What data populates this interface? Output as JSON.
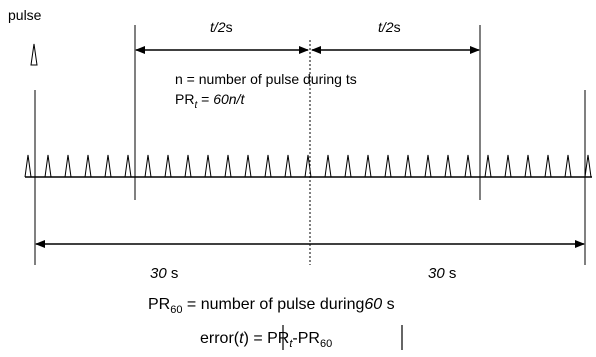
{
  "legend_pulse_label": "pulse",
  "top_left_half": {
    "var": "t/2",
    "unit": "s"
  },
  "top_right_half": {
    "var": "t/2",
    "unit": "s"
  },
  "note": {
    "line1": "n = number of pulse during ts",
    "pr_t_main": "PR",
    "pr_t_sub": "t",
    "pr_t_eq": " = ",
    "pr_t_expr": "60n/t"
  },
  "bottom_left_span": {
    "value": "30",
    "unit": " s"
  },
  "bottom_right_span": {
    "value": "30",
    "unit": " s"
  },
  "formula1": {
    "pr": "PR",
    "sub": "60",
    "text": " = number of pulse during",
    "value": "60",
    "unit": " s"
  },
  "formula2": {
    "prefix": "error(",
    "var": "t",
    "mid": ") = ",
    "pr": "PR",
    "sub_t": "t",
    "minus": "-PR",
    "sub_60": "60"
  },
  "pulse_train": {
    "count": 29
  }
}
